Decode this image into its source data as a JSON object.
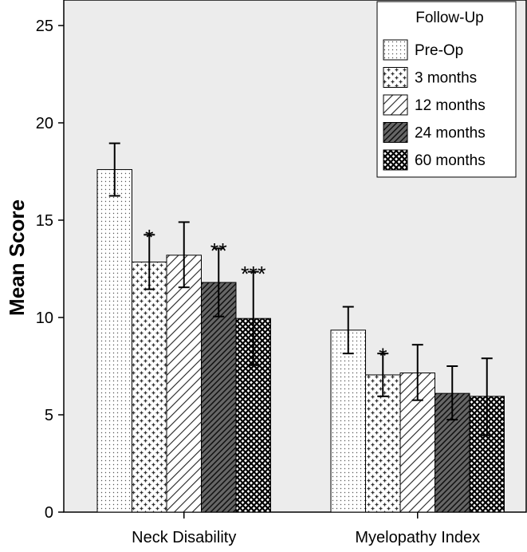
{
  "chart_data": {
    "type": "bar",
    "title": "",
    "xlabel": "",
    "ylabel": "Mean Score",
    "ylim": [
      0,
      26
    ],
    "yticks": [
      0,
      5,
      10,
      15,
      20,
      25
    ],
    "categories": [
      "Neck Disability",
      "Myelopathy Index"
    ],
    "legend_title": "Follow-Up",
    "legend_position": "top-right",
    "series": [
      {
        "name": "Pre-Op",
        "pattern": "dots",
        "values": [
          17.6,
          9.35
        ],
        "err_low": [
          16.25,
          8.15
        ],
        "err_high": [
          18.95,
          10.55
        ],
        "significance": [
          "",
          ""
        ]
      },
      {
        "name": "3 months",
        "pattern": "crosses",
        "values": [
          12.85,
          7.05
        ],
        "err_low": [
          11.45,
          5.95
        ],
        "err_high": [
          14.25,
          8.15
        ],
        "significance": [
          "*",
          "*"
        ]
      },
      {
        "name": "12 months",
        "pattern": "diagonal",
        "values": [
          13.2,
          7.15
        ],
        "err_low": [
          11.55,
          5.75
        ],
        "err_high": [
          14.9,
          8.6
        ],
        "significance": [
          "",
          ""
        ]
      },
      {
        "name": "24 months",
        "pattern": "dense-diagonal",
        "values": [
          11.8,
          6.1
        ],
        "err_low": [
          10.05,
          4.75
        ],
        "err_high": [
          13.55,
          7.5
        ],
        "significance": [
          "**",
          ""
        ]
      },
      {
        "name": "60 months",
        "pattern": "crosshatch",
        "values": [
          9.95,
          5.95
        ],
        "err_low": [
          7.55,
          3.95
        ],
        "err_high": [
          12.35,
          7.9
        ],
        "significance": [
          "***",
          ""
        ]
      }
    ],
    "colors": {
      "plot_bg": "#ececec",
      "bar_fill": "#ffffff",
      "ink": "#000000"
    }
  }
}
